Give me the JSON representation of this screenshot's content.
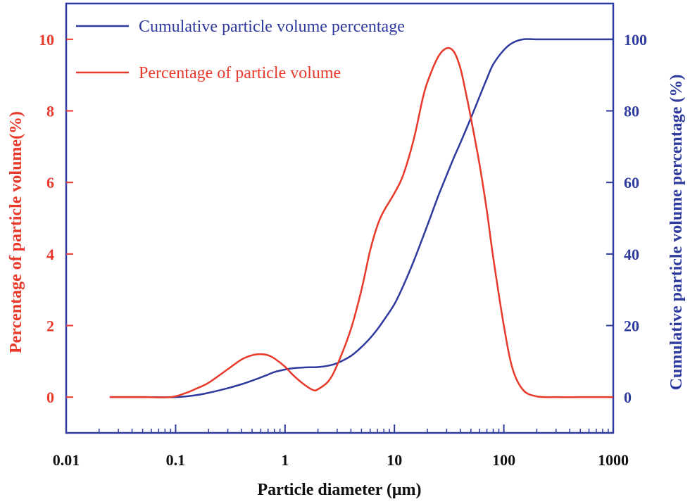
{
  "chart_data": {
    "type": "line",
    "x_scale": "log",
    "xlabel": "Particle diameter (μm)",
    "xlim": [
      0.01,
      1000
    ],
    "x_ticks": [
      {
        "value": 0.01,
        "label": "0.01"
      },
      {
        "value": 0.1,
        "label": "0.1"
      },
      {
        "value": 1,
        "label": "1"
      },
      {
        "value": 10,
        "label": "10"
      },
      {
        "value": 100,
        "label": "100"
      },
      {
        "value": 1000,
        "label": "1000"
      }
    ],
    "left_axis": {
      "label": "Percentage of particle volume(%)",
      "ylim": [
        -1,
        11
      ],
      "ticks": [
        {
          "value": 0,
          "label": "0"
        },
        {
          "value": 2,
          "label": "2"
        },
        {
          "value": 4,
          "label": "4"
        },
        {
          "value": 6,
          "label": "6"
        },
        {
          "value": 8,
          "label": "8"
        },
        {
          "value": 10,
          "label": "10"
        }
      ],
      "color": "#e8392b"
    },
    "right_axis": {
      "label": "Cumulative particle volume percentage (%)",
      "ylim": [
        -10,
        110
      ],
      "ticks": [
        {
          "value": 0,
          "label": "0"
        },
        {
          "value": 20,
          "label": "20"
        },
        {
          "value": 40,
          "label": "40"
        },
        {
          "value": 60,
          "label": "60"
        },
        {
          "value": 80,
          "label": "80"
        },
        {
          "value": 100,
          "label": "100"
        }
      ],
      "color": "#2e3a9e"
    },
    "legend_position": "top-left",
    "series": [
      {
        "name": "Cumulative particle volume percentage",
        "axis": "right",
        "color": "#2e3a9e",
        "x": [
          0.025,
          0.05,
          0.1,
          0.15,
          0.2,
          0.3,
          0.4,
          0.5,
          0.6,
          0.7,
          0.8,
          1.0,
          1.2,
          1.5,
          2.0,
          2.5,
          3.0,
          4,
          5,
          6,
          7,
          8,
          10,
          12,
          15,
          20,
          25,
          30,
          35,
          40,
          50,
          60,
          70,
          80,
          100,
          120,
          150,
          200,
          300,
          500,
          1000
        ],
        "values": [
          0,
          0,
          0,
          0.5,
          1.2,
          2.5,
          3.6,
          4.6,
          5.5,
          6.3,
          7.0,
          7.7,
          8.1,
          8.3,
          8.4,
          8.8,
          9.5,
          11.5,
          14,
          16.5,
          19,
          21.5,
          26,
          31,
          38,
          48,
          56,
          62,
          67,
          71,
          78,
          84,
          89,
          93,
          97,
          99,
          100,
          100,
          100,
          100,
          100
        ]
      },
      {
        "name": "Percentage of particle volume",
        "axis": "left",
        "color": "#e8392b",
        "x": [
          0.025,
          0.05,
          0.09,
          0.12,
          0.15,
          0.2,
          0.3,
          0.4,
          0.5,
          0.6,
          0.7,
          0.8,
          1.0,
          1.2,
          1.5,
          1.8,
          2.0,
          2.5,
          3,
          4,
          5,
          6,
          7,
          8,
          10,
          12,
          15,
          18,
          20,
          25,
          30,
          35,
          40,
          45,
          50,
          60,
          70,
          80,
          100,
          120,
          150,
          200,
          300,
          500,
          1000
        ],
        "values": [
          0,
          0,
          0,
          0.1,
          0.22,
          0.4,
          0.78,
          1.05,
          1.17,
          1.2,
          1.17,
          1.08,
          0.85,
          0.6,
          0.35,
          0.2,
          0.22,
          0.45,
          0.9,
          1.9,
          3.0,
          4.1,
          4.8,
          5.2,
          5.7,
          6.2,
          7.2,
          8.3,
          8.8,
          9.5,
          9.75,
          9.65,
          9.2,
          8.5,
          7.8,
          6.5,
          5.2,
          3.9,
          2.0,
          0.8,
          0.2,
          0.02,
          0,
          0,
          0
        ]
      }
    ]
  }
}
